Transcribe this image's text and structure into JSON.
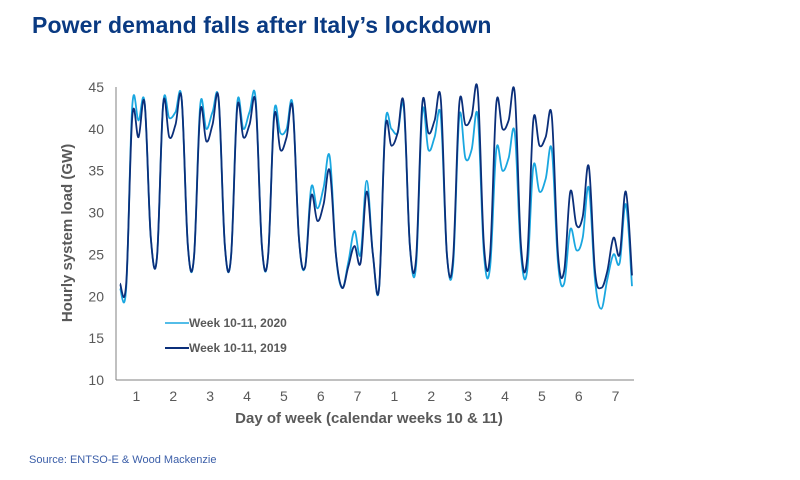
{
  "title": "Power demand falls after Italy’s lockdown",
  "source": "Source: ENTSO-E & Wood Mackenzie",
  "colors": {
    "title": "#0a3a82",
    "series_2020": "#1aa7e0",
    "series_2019": "#0b2f7a",
    "axis": "#808080",
    "text": "#595959",
    "source": "#3b5ea8"
  },
  "chart_data": {
    "type": "line",
    "title": "Power demand falls after Italy’s lockdown",
    "xlabel": "Day of week (calendar weeks 10 & 11)",
    "ylabel": "Hourly system load (GW)",
    "ylim": [
      10,
      45
    ],
    "yticks": [
      "10",
      "15",
      "20",
      "25",
      "30",
      "35",
      "40",
      "45"
    ],
    "xtick_labels": [
      "1",
      "2",
      "3",
      "4",
      "5",
      "6",
      "7",
      "1",
      "2",
      "3",
      "4",
      "5",
      "6",
      "7"
    ],
    "x_unit": "hours since start of week 10 (4-hour steps)",
    "grid": false,
    "legend_position": "lower-left",
    "series": [
      {
        "name": "Week 10-11, 2020",
        "values": [
          21,
          21,
          42.8,
          41,
          43,
          27,
          24.7,
          43,
          41.3,
          42,
          43.5,
          26,
          24.7,
          42.8,
          40,
          42,
          43.3,
          26,
          24.7,
          43,
          40,
          42,
          43.5,
          26,
          24.7,
          42,
          39.5,
          40,
          42.8,
          27,
          23.5,
          33,
          30.5,
          33,
          36.7,
          25,
          21,
          24,
          27.8,
          25,
          33.8,
          25,
          21,
          40.5,
          40,
          39.5,
          42.5,
          26,
          23.7,
          42,
          37.5,
          39,
          41.5,
          25,
          23.7,
          41.5,
          36.5,
          37.5,
          41.5,
          25,
          23.5,
          37.5,
          35,
          36.5,
          39.5,
          25,
          23,
          35.5,
          32.5,
          34,
          37.5,
          24,
          21.5,
          28,
          25.5,
          27,
          33,
          22,
          18.5,
          22,
          25,
          24,
          31,
          21.2
        ]
      },
      {
        "name": "Week 10-11, 2019",
        "values": [
          21.5,
          21.5,
          41.5,
          39,
          43,
          27,
          24.7,
          43,
          39,
          40.5,
          43.5,
          26,
          24.7,
          42,
          38.5,
          40.5,
          43.5,
          26,
          24.7,
          42.5,
          39,
          40.5,
          43,
          26,
          24.7,
          41.5,
          37.5,
          39,
          42.5,
          27,
          23.5,
          32,
          29,
          31,
          35,
          25,
          21,
          23.5,
          26,
          24,
          32.5,
          25,
          21,
          40,
          38,
          39.5,
          43,
          26,
          24.5,
          43,
          39.5,
          41,
          43.5,
          25,
          24.5,
          43,
          40.5,
          41.5,
          44.5,
          26,
          25,
          43,
          40,
          41,
          44.2,
          26,
          24.5,
          41,
          38,
          39,
          41.5,
          25,
          23,
          32.5,
          28.5,
          29.5,
          35.5,
          23,
          21,
          23,
          27,
          25,
          32.5,
          22.5
        ]
      }
    ]
  }
}
